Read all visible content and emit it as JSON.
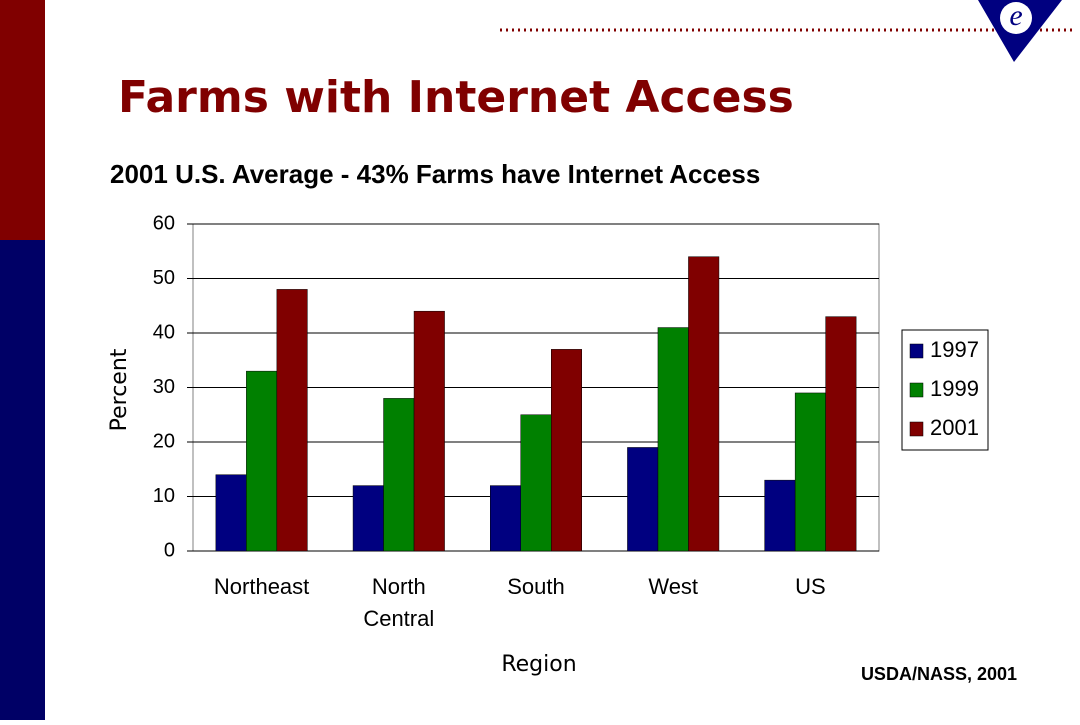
{
  "logo": "e",
  "chart_data": {
    "type": "bar",
    "title": "Farms with Internet Access",
    "subtitle": "2001 U.S. Average - 43% Farms have Internet Access",
    "x_label": "Region",
    "y_label": "Percent",
    "source": "USDA/NASS, 2001",
    "categories": [
      "Northeast",
      "North Central",
      "South",
      "West",
      "US"
    ],
    "series": [
      {
        "name": "1997",
        "color": "#000080",
        "values": [
          14,
          12,
          12,
          19,
          13
        ]
      },
      {
        "name": "1999",
        "color": "#008000",
        "values": [
          33,
          28,
          25,
          41,
          29
        ]
      },
      {
        "name": "2001",
        "color": "#800000",
        "values": [
          48,
          44,
          37,
          54,
          43
        ]
      }
    ],
    "ylim": [
      0,
      60
    ],
    "yticks": [
      0,
      10,
      20,
      30,
      40,
      50,
      60
    ],
    "grid": true,
    "legend": "right"
  }
}
